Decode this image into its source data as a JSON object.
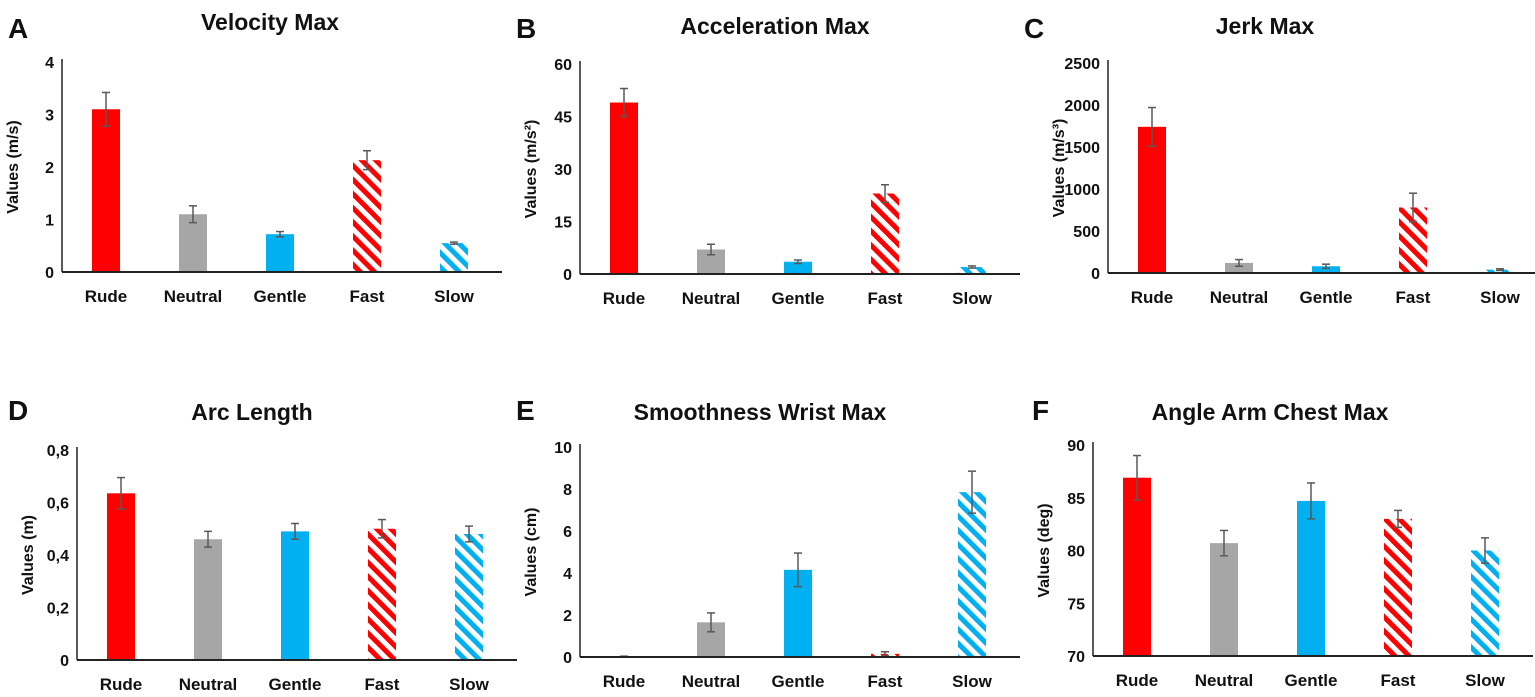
{
  "colors": {
    "rude": "#ff0000",
    "neutral": "#a6a6a6",
    "gentle": "#00b0f0",
    "fast": "#ff0000",
    "slow": "#00b0f0",
    "error_bar": "#595959"
  },
  "chart_data": [
    {
      "type": "bar",
      "letter": "A",
      "title": "Velocity Max",
      "ylabel": "Values (m/s)",
      "ylim": [
        0,
        4
      ],
      "yticks": [
        "0",
        "1",
        "2",
        "3",
        "4"
      ],
      "categories": [
        "Rude",
        "Neutral",
        "Gentle",
        "Fast",
        "Slow"
      ],
      "values": [
        3.1,
        1.1,
        0.72,
        2.13,
        0.55
      ],
      "errors": [
        0.32,
        0.16,
        0.05,
        0.18,
        0.02
      ]
    },
    {
      "type": "bar",
      "letter": "B",
      "title": "Acceleration Max",
      "ylabel": "Values (m/s²)",
      "ylim": [
        0,
        60
      ],
      "yticks": [
        "0",
        "15",
        "30",
        "45",
        "60"
      ],
      "categories": [
        "Rude",
        "Neutral",
        "Gentle",
        "Fast",
        "Slow"
      ],
      "values": [
        49,
        7,
        3.5,
        23,
        2
      ],
      "errors": [
        4,
        1.5,
        0.5,
        2.5,
        0.3
      ]
    },
    {
      "type": "bar",
      "letter": "C",
      "title": "Jerk Max",
      "ylabel": "Values (m/s³)",
      "ylim": [
        0,
        2500
      ],
      "yticks": [
        "0",
        "500",
        "1000",
        "1500",
        "2000",
        "2500"
      ],
      "categories": [
        "Rude",
        "Neutral",
        "Gentle",
        "Fast",
        "Slow"
      ],
      "values": [
        1740,
        120,
        80,
        780,
        40
      ],
      "errors": [
        230,
        40,
        25,
        170,
        10
      ]
    },
    {
      "type": "bar",
      "letter": "D",
      "title": "Arc Length",
      "ylabel": "Values (m)",
      "ylim": [
        0,
        0.8
      ],
      "yticks": [
        "0",
        "0,2",
        "0,4",
        "0,6",
        "0,8"
      ],
      "categories": [
        "Rude",
        "Neutral",
        "Gentle",
        "Fast",
        "Slow"
      ],
      "values": [
        0.635,
        0.46,
        0.49,
        0.5,
        0.48
      ],
      "errors": [
        0.06,
        0.03,
        0.03,
        0.035,
        0.03
      ]
    },
    {
      "type": "bar",
      "letter": "E",
      "title": "Smoothness Wrist Max",
      "ylabel": "Values (cm)",
      "ylim": [
        0,
        10
      ],
      "yticks": [
        "0",
        "2",
        "4",
        "6",
        "8",
        "10"
      ],
      "categories": [
        "Rude",
        "Neutral",
        "Gentle",
        "Fast",
        "Slow"
      ],
      "values": [
        0.02,
        1.65,
        4.15,
        0.15,
        7.85
      ],
      "errors": [
        0.02,
        0.45,
        0.8,
        0.1,
        1.0
      ]
    },
    {
      "type": "bar",
      "letter": "F",
      "title": "Angle Arm Chest Max",
      "ylabel": "Values (deg)",
      "ylim": [
        70,
        90
      ],
      "yticks": [
        "70",
        "75",
        "80",
        "85",
        "90"
      ],
      "categories": [
        "Rude",
        "Neutral",
        "Gentle",
        "Fast",
        "Slow"
      ],
      "values": [
        86.9,
        80.7,
        84.7,
        83,
        80
      ],
      "errors": [
        2.1,
        1.2,
        1.7,
        0.8,
        1.2
      ]
    }
  ]
}
